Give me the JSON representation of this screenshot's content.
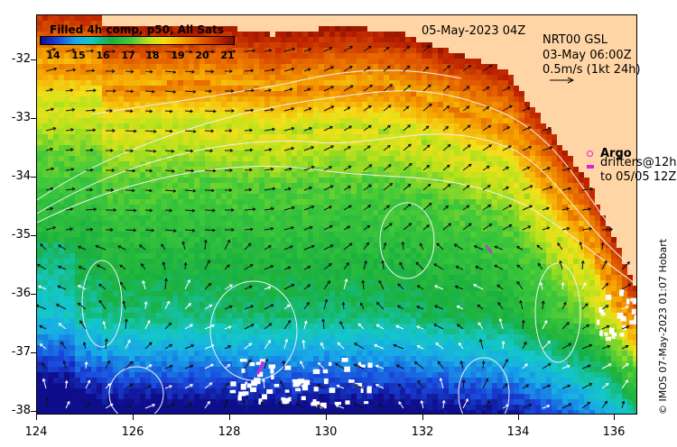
{
  "map": {
    "colorbar": {
      "title": "Filled 4h comp, p50, All Sats",
      "labels": [
        "14",
        "15",
        "16",
        "17",
        "18",
        "19",
        "20",
        "21"
      ]
    },
    "date_label": "05-May-2023 04Z",
    "gsl_lines": [
      "NRT00 GSL",
      "03-May 06:00Z",
      "0.5m/s (1kt 24h)"
    ],
    "legend": {
      "argo": "Argo",
      "drifters_line1": "drifters@12h",
      "drifters_line2": "to 05/05 12Z"
    },
    "credit": "© IMOS 07-May-2023 01:07 Hobart",
    "y_ticks": [
      "-32",
      "-33",
      "-34",
      "-35",
      "-36",
      "-37",
      "-38"
    ],
    "x_ticks": [
      "124",
      "126",
      "128",
      "130",
      "132",
      "134",
      "136"
    ],
    "lat_range": [
      -38.05,
      -31.25
    ],
    "lon_range": [
      124,
      136.5
    ],
    "colors": {
      "land": "#ffd5a6",
      "marker": "#e020e0"
    }
  }
}
